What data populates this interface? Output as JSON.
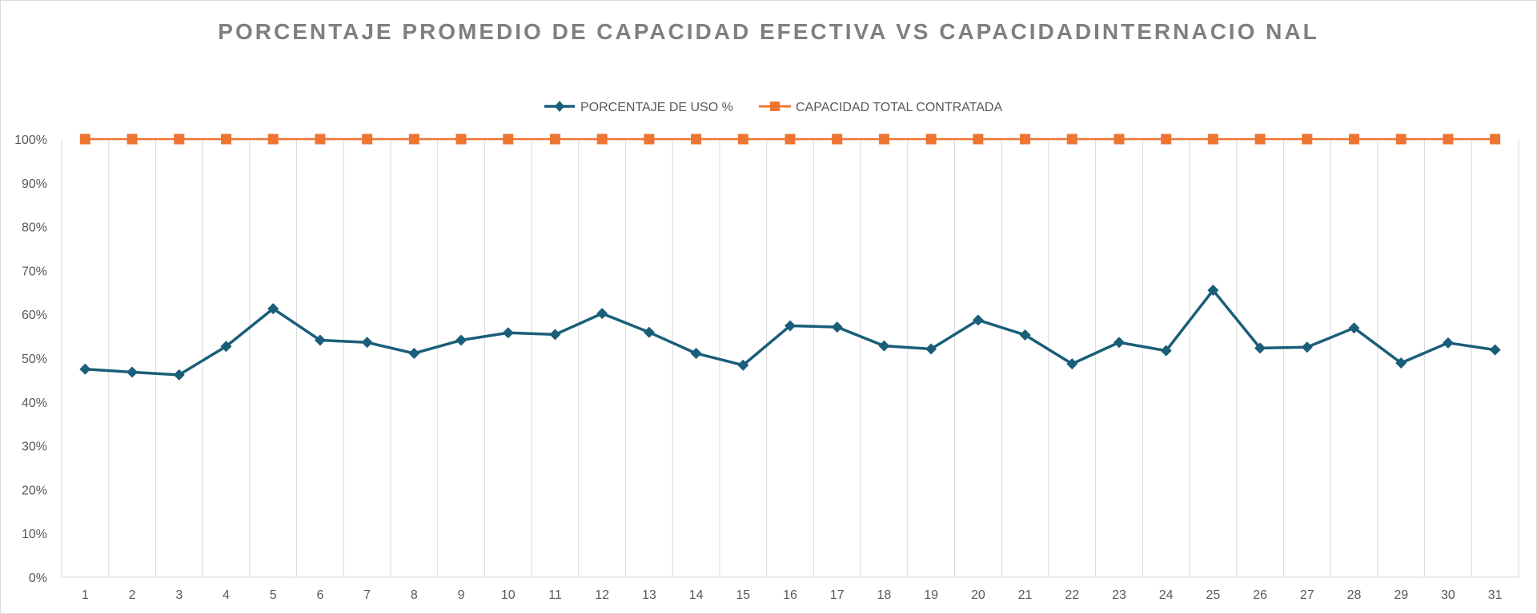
{
  "chart_data": {
    "type": "line",
    "title": "PORCENTAJE PROMEDIO DE CAPACIDAD EFECTIVA VS CAPACIDADINTERNACIO NAL",
    "xlabel": "",
    "ylabel": "",
    "categories": [
      "1",
      "2",
      "3",
      "4",
      "5",
      "6",
      "7",
      "8",
      "9",
      "10",
      "11",
      "12",
      "13",
      "14",
      "15",
      "16",
      "17",
      "18",
      "19",
      "20",
      "21",
      "22",
      "23",
      "24",
      "25",
      "26",
      "27",
      "28",
      "29",
      "30",
      "31"
    ],
    "y_ticks": [
      "0%",
      "10%",
      "20%",
      "30%",
      "40%",
      "50%",
      "60%",
      "70%",
      "80%",
      "90%",
      "100%"
    ],
    "ylim": [
      0,
      100
    ],
    "grid": "vertical",
    "legend_position": "top",
    "series": [
      {
        "name": "PORCENTAJE DE USO %",
        "color": "#1a5e7a",
        "marker": "diamond",
        "values": [
          47.5,
          46.8,
          46.2,
          52.7,
          61.3,
          54.1,
          53.6,
          51.1,
          54.1,
          55.8,
          55.4,
          60.2,
          55.9,
          51.1,
          48.4,
          57.4,
          57.1,
          52.8,
          52.1,
          58.7,
          55.3,
          48.7,
          53.6,
          51.7,
          65.5,
          52.3,
          52.5,
          56.9,
          48.9,
          53.5,
          51.9
        ]
      },
      {
        "name": "CAPACIDAD TOTAL CONTRATADA",
        "color": "#ee7432",
        "marker": "square",
        "values": [
          100,
          100,
          100,
          100,
          100,
          100,
          100,
          100,
          100,
          100,
          100,
          100,
          100,
          100,
          100,
          100,
          100,
          100,
          100,
          100,
          100,
          100,
          100,
          100,
          100,
          100,
          100,
          100,
          100,
          100,
          100
        ]
      }
    ]
  }
}
